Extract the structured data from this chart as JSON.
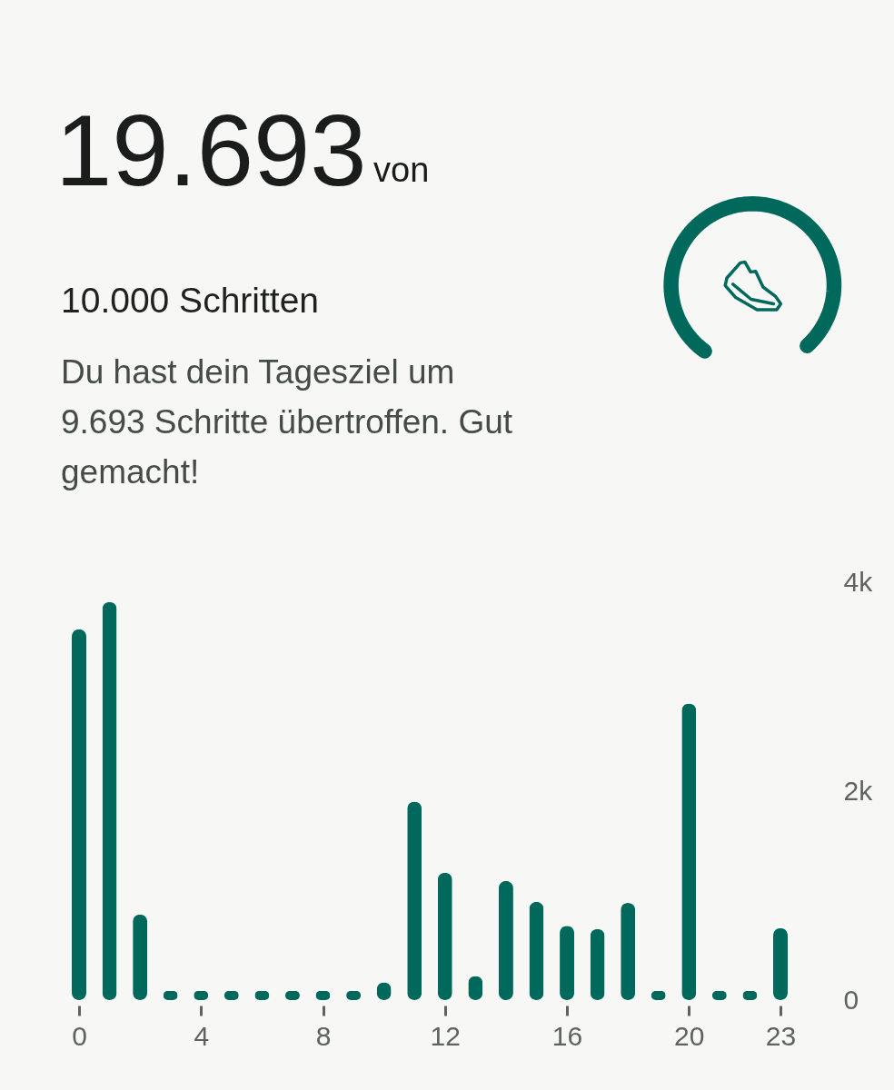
{
  "chart_data": {
    "type": "bar",
    "title": "19.693",
    "annotations": [
      "von",
      "10.000 Schritten",
      "Du hast dein Tagesziel um 9.693 Schritte übertroffen. Gut gemacht!"
    ],
    "x": [
      0,
      1,
      2,
      3,
      4,
      5,
      6,
      7,
      8,
      9,
      10,
      11,
      12,
      13,
      14,
      15,
      16,
      17,
      18,
      19,
      20,
      21,
      22,
      23
    ],
    "values": [
      3550,
      3810,
      820,
      90,
      90,
      90,
      90,
      90,
      90,
      90,
      170,
      1900,
      1220,
      230,
      1140,
      940,
      710,
      680,
      930,
      90,
      2840,
      90,
      90,
      690
    ],
    "color": "#00695c",
    "xlim": [
      0,
      23
    ],
    "xticks": [
      0,
      4,
      8,
      12,
      16,
      20,
      23
    ],
    "ylim": [
      0,
      4000
    ],
    "yticks": [
      0,
      {
        "value": 2000,
        "label": "2k"
      },
      {
        "value": 4000,
        "label": "4k"
      }
    ]
  }
}
